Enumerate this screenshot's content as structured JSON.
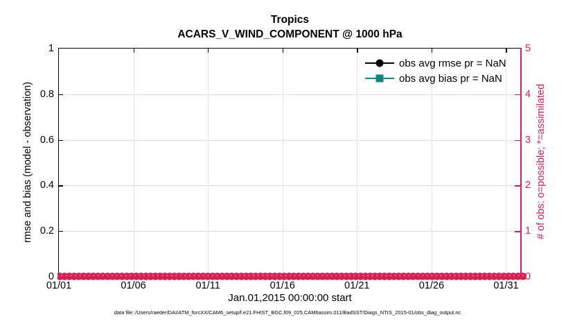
{
  "title": {
    "line1": "Tropics",
    "line2": "ACARS_V_WIND_COMPONENT @ 1000 hPa"
  },
  "axes": {
    "left": {
      "label": "rmse and bias (model - observation)",
      "ticks": [
        "1",
        "0.8",
        "0.6",
        "0.4",
        "0.2",
        "0"
      ],
      "color": "#000000"
    },
    "right": {
      "label": "# of obs: o=possible; *=assimilated",
      "ticks": [
        "5",
        "4",
        "3",
        "2",
        "1",
        "0"
      ],
      "color": "#D91E56"
    },
    "x": {
      "label": "Jan.01,2015 00:00:00 start",
      "ticks": [
        "01/01",
        "01/06",
        "01/11",
        "01/16",
        "01/21",
        "01/26",
        "01/31"
      ],
      "tick_step_days": 5,
      "span_days": 31
    }
  },
  "legend": [
    {
      "label": "obs avg rmse pr = NaN",
      "marker": "circle",
      "color": "#000000"
    },
    {
      "label": "obs avg bias pr = NaN",
      "marker": "square",
      "color": "#16857B"
    }
  ],
  "footer": {
    "data_file": "data file: /Users/raeder/DAI/ATM_forcXX/CAM6_setup/f.e21.FHIST_BGC.f09_025.CAM6assim.011/BadSST/Diags_NTrS_2015-01/obs_diag_output.nc"
  },
  "colors": {
    "pink": "#D91E56",
    "teal": "#16857B",
    "grid_vertical": "#E3E3E3",
    "grid_horizontal": "#F6D6E0"
  },
  "chart_data": {
    "type": "line",
    "title": "Tropics",
    "subtitle": "ACARS_V_WIND_COMPONENT @ 1000 hPa",
    "xlabel": "Jan.01,2015 00:00:00 start",
    "x_tick_labels": [
      "01/01",
      "01/06",
      "01/11",
      "01/16",
      "01/21",
      "01/26",
      "01/31"
    ],
    "x_range_days": [
      0,
      31
    ],
    "left_axis": {
      "ylabel": "rmse and bias (model - observation)",
      "ylim": [
        0,
        1
      ],
      "tick_step": 0.2
    },
    "right_axis": {
      "ylabel": "# of obs: o=possible; *=assimilated",
      "ylim": [
        0,
        5
      ],
      "tick_step": 1
    },
    "grid": true,
    "legend_position": "inside-top-right",
    "series": [
      {
        "name": "obs avg rmse pr = NaN",
        "axis": "left",
        "marker": "circle",
        "color": "#000000",
        "values": "all NaN - no curve plotted"
      },
      {
        "name": "obs avg bias pr = NaN",
        "axis": "left",
        "marker": "square",
        "color": "#16857B",
        "values": "all NaN - no curve plotted"
      },
      {
        "name": "# of obs possible (o)",
        "axis": "right",
        "marker": "o",
        "color": "#D91E56",
        "values": "0 at every time bin from 01/01 through 02/01"
      },
      {
        "name": "# of obs assimilated (*)",
        "axis": "right",
        "marker": "*",
        "color": "#D91E56",
        "values": "0 at every time bin from 01/01 through 02/01"
      }
    ]
  }
}
